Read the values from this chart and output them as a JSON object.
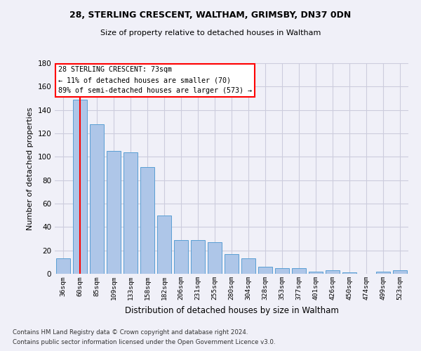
{
  "title1": "28, STERLING CRESCENT, WALTHAM, GRIMSBY, DN37 0DN",
  "title2": "Size of property relative to detached houses in Waltham",
  "xlabel": "Distribution of detached houses by size in Waltham",
  "ylabel": "Number of detached properties",
  "categories": [
    "36sqm",
    "60sqm",
    "85sqm",
    "109sqm",
    "133sqm",
    "158sqm",
    "182sqm",
    "206sqm",
    "231sqm",
    "255sqm",
    "280sqm",
    "304sqm",
    "328sqm",
    "353sqm",
    "377sqm",
    "401sqm",
    "426sqm",
    "450sqm",
    "474sqm",
    "499sqm",
    "523sqm"
  ],
  "values": [
    13,
    149,
    128,
    105,
    104,
    91,
    50,
    29,
    29,
    27,
    17,
    13,
    6,
    5,
    5,
    2,
    3,
    1,
    0,
    2,
    3
  ],
  "bar_color": "#aec6e8",
  "bar_edge_color": "#5a9fd4",
  "grid_color": "#ccccdd",
  "vline_x": 1,
  "vline_color": "red",
  "annotation_text": "28 STERLING CRESCENT: 73sqm\n← 11% of detached houses are smaller (70)\n89% of semi-detached houses are larger (573) →",
  "annotation_box_color": "white",
  "annotation_box_edge": "red",
  "ylim": [
    0,
    180
  ],
  "yticks": [
    0,
    20,
    40,
    60,
    80,
    100,
    120,
    140,
    160,
    180
  ],
  "footer1": "Contains HM Land Registry data © Crown copyright and database right 2024.",
  "footer2": "Contains public sector information licensed under the Open Government Licence v3.0.",
  "bg_color": "#f0f0f8"
}
